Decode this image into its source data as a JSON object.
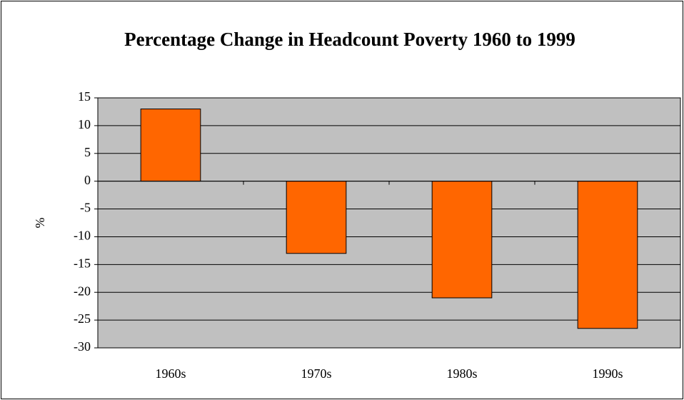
{
  "chart_data": {
    "type": "bar",
    "title": "Percentage Change in Headcount Poverty 1960 to 1999",
    "y_label": "%",
    "categories": [
      "1960s",
      "1970s",
      "1980s",
      "1990s"
    ],
    "values": [
      13,
      -13,
      -21,
      -26.5
    ],
    "color": "#ff6600",
    "plot_background": "#c0c0c0",
    "ylim": [
      -30,
      15
    ],
    "yticks": [
      -30,
      -25,
      -20,
      -15,
      -10,
      -5,
      0,
      5,
      10,
      15
    ],
    "grid": true
  }
}
